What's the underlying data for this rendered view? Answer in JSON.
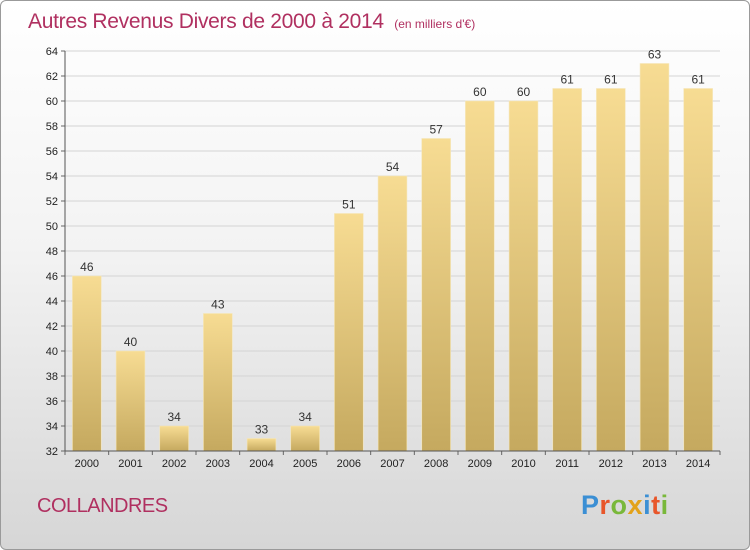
{
  "header": {
    "title": "Autres Revenus Divers de 2000 à 2014",
    "subtitle": "(en milliers d'€)"
  },
  "footer": {
    "commune": "COLLANDRES",
    "logo_letters": [
      "P",
      "r",
      "o",
      "x",
      "i",
      "t",
      "i"
    ],
    "logo_colors": [
      "#3b8fd4",
      "#e8562a",
      "#79b83a",
      "#e3a21a",
      "#3b8fd4",
      "#e8562a",
      "#79b83a"
    ]
  },
  "chart_data": {
    "type": "bar",
    "categories": [
      "2000",
      "2001",
      "2002",
      "2003",
      "2004",
      "2005",
      "2006",
      "2007",
      "2008",
      "2009",
      "2010",
      "2011",
      "2012",
      "2013",
      "2014"
    ],
    "values": [
      46,
      40,
      34,
      43,
      33,
      34,
      51,
      54,
      57,
      60,
      60,
      61,
      61,
      63,
      61
    ],
    "ylim": [
      32,
      64
    ],
    "yticks": [
      32,
      34,
      36,
      38,
      40,
      42,
      44,
      46,
      48,
      50,
      52,
      54,
      56,
      58,
      60,
      62,
      64
    ],
    "grid": true,
    "bar_color_top": "#f7dc93",
    "bar_color_bottom": "#c5a95f"
  }
}
